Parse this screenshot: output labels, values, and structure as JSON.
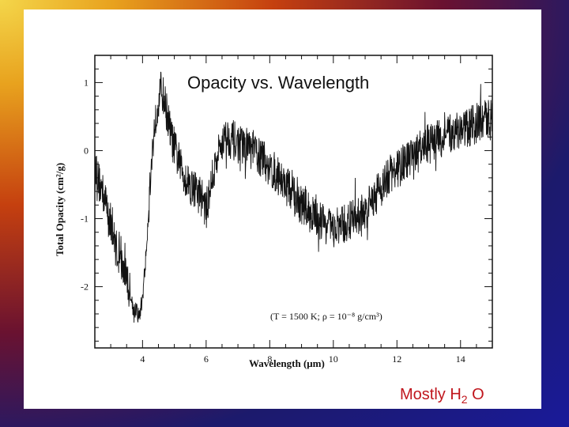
{
  "slide": {
    "caption": "Mostly H",
    "caption_subscript": "2",
    "caption_suffix": " O"
  },
  "chart_data": {
    "type": "line",
    "title": "Opacity vs. Wavelength",
    "xlabel": "Wavelength (μm)",
    "ylabel": "Total Opacity (cm²/g)",
    "annotation": "(T = 1500 K; ρ = 10⁻⁸ g/cm³)",
    "xlim": [
      2.5,
      15
    ],
    "ylim": [
      -2.9,
      1.4
    ],
    "xticks": [
      4,
      6,
      8,
      10,
      12,
      14
    ],
    "xtick_labels": [
      "4",
      "6",
      "8",
      "10",
      "12",
      "14"
    ],
    "yticks": [
      1,
      0,
      -1,
      -2
    ],
    "ytick_labels": [
      "1",
      "0",
      "-1",
      "-2"
    ],
    "series": [
      {
        "name": "opacity",
        "x": [
          2.5,
          2.7,
          2.9,
          3.1,
          3.3,
          3.5,
          3.7,
          3.9,
          4.0,
          4.1,
          4.2,
          4.35,
          4.5,
          4.6,
          4.75,
          4.9,
          5.1,
          5.3,
          5.5,
          5.7,
          5.9,
          6.0,
          6.1,
          6.3,
          6.5,
          6.7,
          7.0,
          7.5,
          8.0,
          8.5,
          9.0,
          9.5,
          10.0,
          10.3,
          10.6,
          11.0,
          11.4,
          11.8,
          12.2,
          12.6,
          13.0,
          13.5,
          14.0,
          14.5,
          15.0
        ],
        "y": [
          -0.3,
          -0.55,
          -0.85,
          -1.3,
          -1.65,
          -1.85,
          -2.3,
          -2.45,
          -2.15,
          -1.6,
          -0.8,
          0.25,
          0.8,
          0.9,
          0.6,
          0.2,
          -0.1,
          -0.35,
          -0.5,
          -0.6,
          -0.7,
          -0.9,
          -0.6,
          -0.2,
          0.15,
          0.2,
          0.1,
          0.0,
          -0.25,
          -0.5,
          -0.8,
          -1.0,
          -1.15,
          -1.1,
          -1.0,
          -0.9,
          -0.6,
          -0.35,
          -0.2,
          -0.05,
          0.1,
          0.2,
          0.3,
          0.4,
          0.5
        ]
      }
    ],
    "noise_amplitude": 0.3,
    "grid": false
  }
}
